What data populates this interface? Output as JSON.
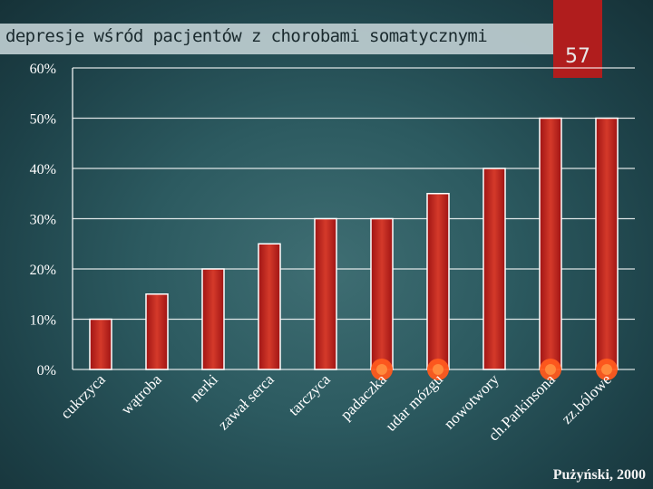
{
  "header": {
    "title": "depresje wśród pacjentów z chorobami somatycznymi",
    "slide_number": "57"
  },
  "source": "Pużyński, 2000",
  "colors": {
    "bar": "#a01414",
    "bar_highlight": "#d43a2a",
    "marker": "#ff5a1e",
    "text": "#ffffff",
    "gridline": "#ffffff"
  },
  "chart_data": {
    "type": "bar",
    "title": "",
    "xlabel": "",
    "ylabel": "",
    "categories": [
      "cukrzyca",
      "wątroba",
      "nerki",
      "zawał serca",
      "tarczyca",
      "padaczka",
      "udar mózgu",
      "nowotwory",
      "ch.Parkinsona",
      "zz.bólowe"
    ],
    "values": [
      10,
      15,
      20,
      25,
      30,
      30,
      35,
      40,
      50,
      50
    ],
    "marked_categories": [
      "padaczka",
      "udar mózgu",
      "ch.Parkinsona",
      "zz.bólowe"
    ],
    "ylim": [
      0,
      60
    ],
    "yticks": [
      "0%",
      "10%",
      "20%",
      "30%",
      "40%",
      "50%",
      "60%"
    ],
    "grid": true
  }
}
